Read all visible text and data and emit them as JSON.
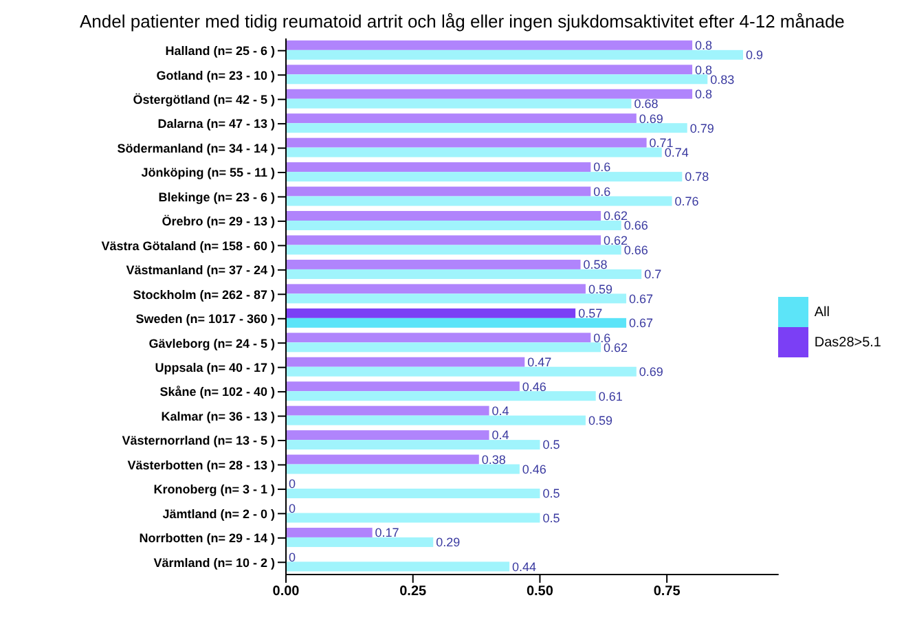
{
  "chart_data": {
    "type": "bar",
    "orientation": "horizontal",
    "title": "Andel patienter med tidig reumatoid artrit och låg eller ingen sjukdomsaktivitet efter 4-12 månade",
    "categories": [
      "Halland (n= 25 - 6 )",
      "Gotland (n= 23 - 10 )",
      "Östergötland (n= 42 - 5 )",
      "Dalarna (n= 47 - 13 )",
      "Södermanland (n= 34 - 14 )",
      "Jönköping (n= 55 - 11 )",
      "Blekinge (n= 23 - 6 )",
      "Örebro (n= 29 - 13 )",
      "Västra Götaland (n= 158 - 60 )",
      "Västmanland (n= 37 - 24 )",
      "Stockholm (n= 262 - 87 )",
      "Sweden (n= 1017 - 360 )",
      "Gävleborg (n= 24 - 5 )",
      "Uppsala (n= 40 - 17 )",
      "Skåne (n= 102 - 40 )",
      "Kalmar (n= 36 - 13 )",
      "Västernorrland (n= 13 - 5 )",
      "Västerbotten (n= 28 - 13 )",
      "Kronoberg (n= 3 - 1 )",
      "Jämtland (n= 2 - 0 )",
      "Norrbotten (n= 29 - 14 )",
      "Värmland (n= 10 - 2 )"
    ],
    "series": [
      {
        "name": "Das28>5.1",
        "color": "#7b3ff5",
        "colors": [
          "#b084fc",
          "#b084fc",
          "#b084fc",
          "#b084fc",
          "#b084fc",
          "#b084fc",
          "#b084fc",
          "#b084fc",
          "#b084fc",
          "#b084fc",
          "#b084fc",
          "#7b3ff5",
          "#b084fc",
          "#b084fc",
          "#b084fc",
          "#b084fc",
          "#b084fc",
          "#b084fc",
          "#b084fc",
          "#b084fc",
          "#b084fc",
          "#b084fc"
        ],
        "values": [
          0.8,
          0.8,
          0.8,
          0.69,
          0.71,
          0.6,
          0.6,
          0.62,
          0.62,
          0.58,
          0.59,
          0.57,
          0.6,
          0.47,
          0.46,
          0.4,
          0.4,
          0.38,
          0,
          0,
          0.17,
          0
        ]
      },
      {
        "name": "All",
        "color": "#5ce4f8",
        "colors": [
          "#a0f4fc",
          "#a0f4fc",
          "#a0f4fc",
          "#a0f4fc",
          "#a0f4fc",
          "#a0f4fc",
          "#a0f4fc",
          "#a0f4fc",
          "#a0f4fc",
          "#a0f4fc",
          "#a0f4fc",
          "#5ce4f8",
          "#a0f4fc",
          "#a0f4fc",
          "#a0f4fc",
          "#a0f4fc",
          "#a0f4fc",
          "#a0f4fc",
          "#a0f4fc",
          "#a0f4fc",
          "#a0f4fc",
          "#a0f4fc"
        ],
        "values": [
          0.9,
          0.83,
          0.68,
          0.79,
          0.74,
          0.78,
          0.76,
          0.66,
          0.66,
          0.7,
          0.67,
          0.67,
          0.62,
          0.69,
          0.61,
          0.59,
          0.5,
          0.46,
          0.5,
          0.5,
          0.29,
          0.44
        ]
      }
    ],
    "xlim": [
      0,
      0.97
    ],
    "xticks": [
      {
        "value": 0,
        "label": "0.00"
      },
      {
        "value": 0.25,
        "label": "0.25"
      },
      {
        "value": 0.5,
        "label": "0.50"
      },
      {
        "value": 0.75,
        "label": "0.75"
      }
    ],
    "data_labels": true,
    "legend": "right",
    "grid": false
  }
}
